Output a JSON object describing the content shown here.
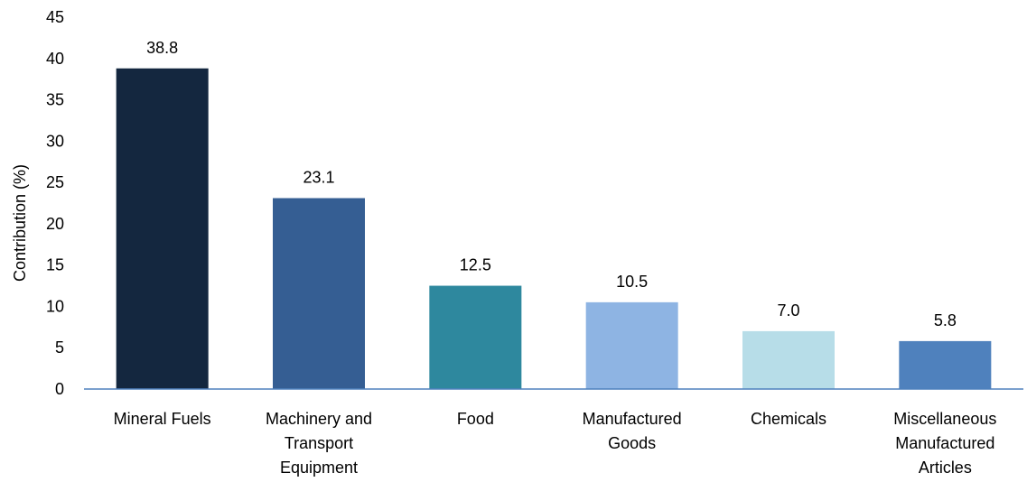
{
  "chart_data": {
    "type": "bar",
    "title": "",
    "xlabel": "",
    "ylabel": "Contribution (%)",
    "ylim": [
      0,
      45
    ],
    "yticks": [
      0,
      5,
      10,
      15,
      20,
      25,
      30,
      35,
      40,
      45
    ],
    "grid": false,
    "legend": "none",
    "categories": [
      "Mineral Fuels",
      "Machinery and Transport Equipment",
      "Food",
      "Manufactured Goods",
      "Chemicals",
      "Miscellaneous Manufactured Articles"
    ],
    "category_lines": [
      [
        "Mineral Fuels"
      ],
      [
        "Machinery and",
        "Transport",
        "Equipment"
      ],
      [
        "Food"
      ],
      [
        "Manufactured",
        "Goods"
      ],
      [
        "Chemicals"
      ],
      [
        "Miscellaneous",
        "Manufactured",
        "Articles"
      ]
    ],
    "values": [
      38.8,
      23.1,
      12.5,
      10.5,
      7.0,
      5.8
    ],
    "value_labels": [
      "38.8",
      "23.1",
      "12.5",
      "10.5",
      "7.0",
      "5.8"
    ],
    "colors": [
      "#14273f",
      "#355e93",
      "#2e889e",
      "#8eb4e3",
      "#b7dde8",
      "#4f81bd"
    ],
    "axis_color": "#4f81bd"
  }
}
